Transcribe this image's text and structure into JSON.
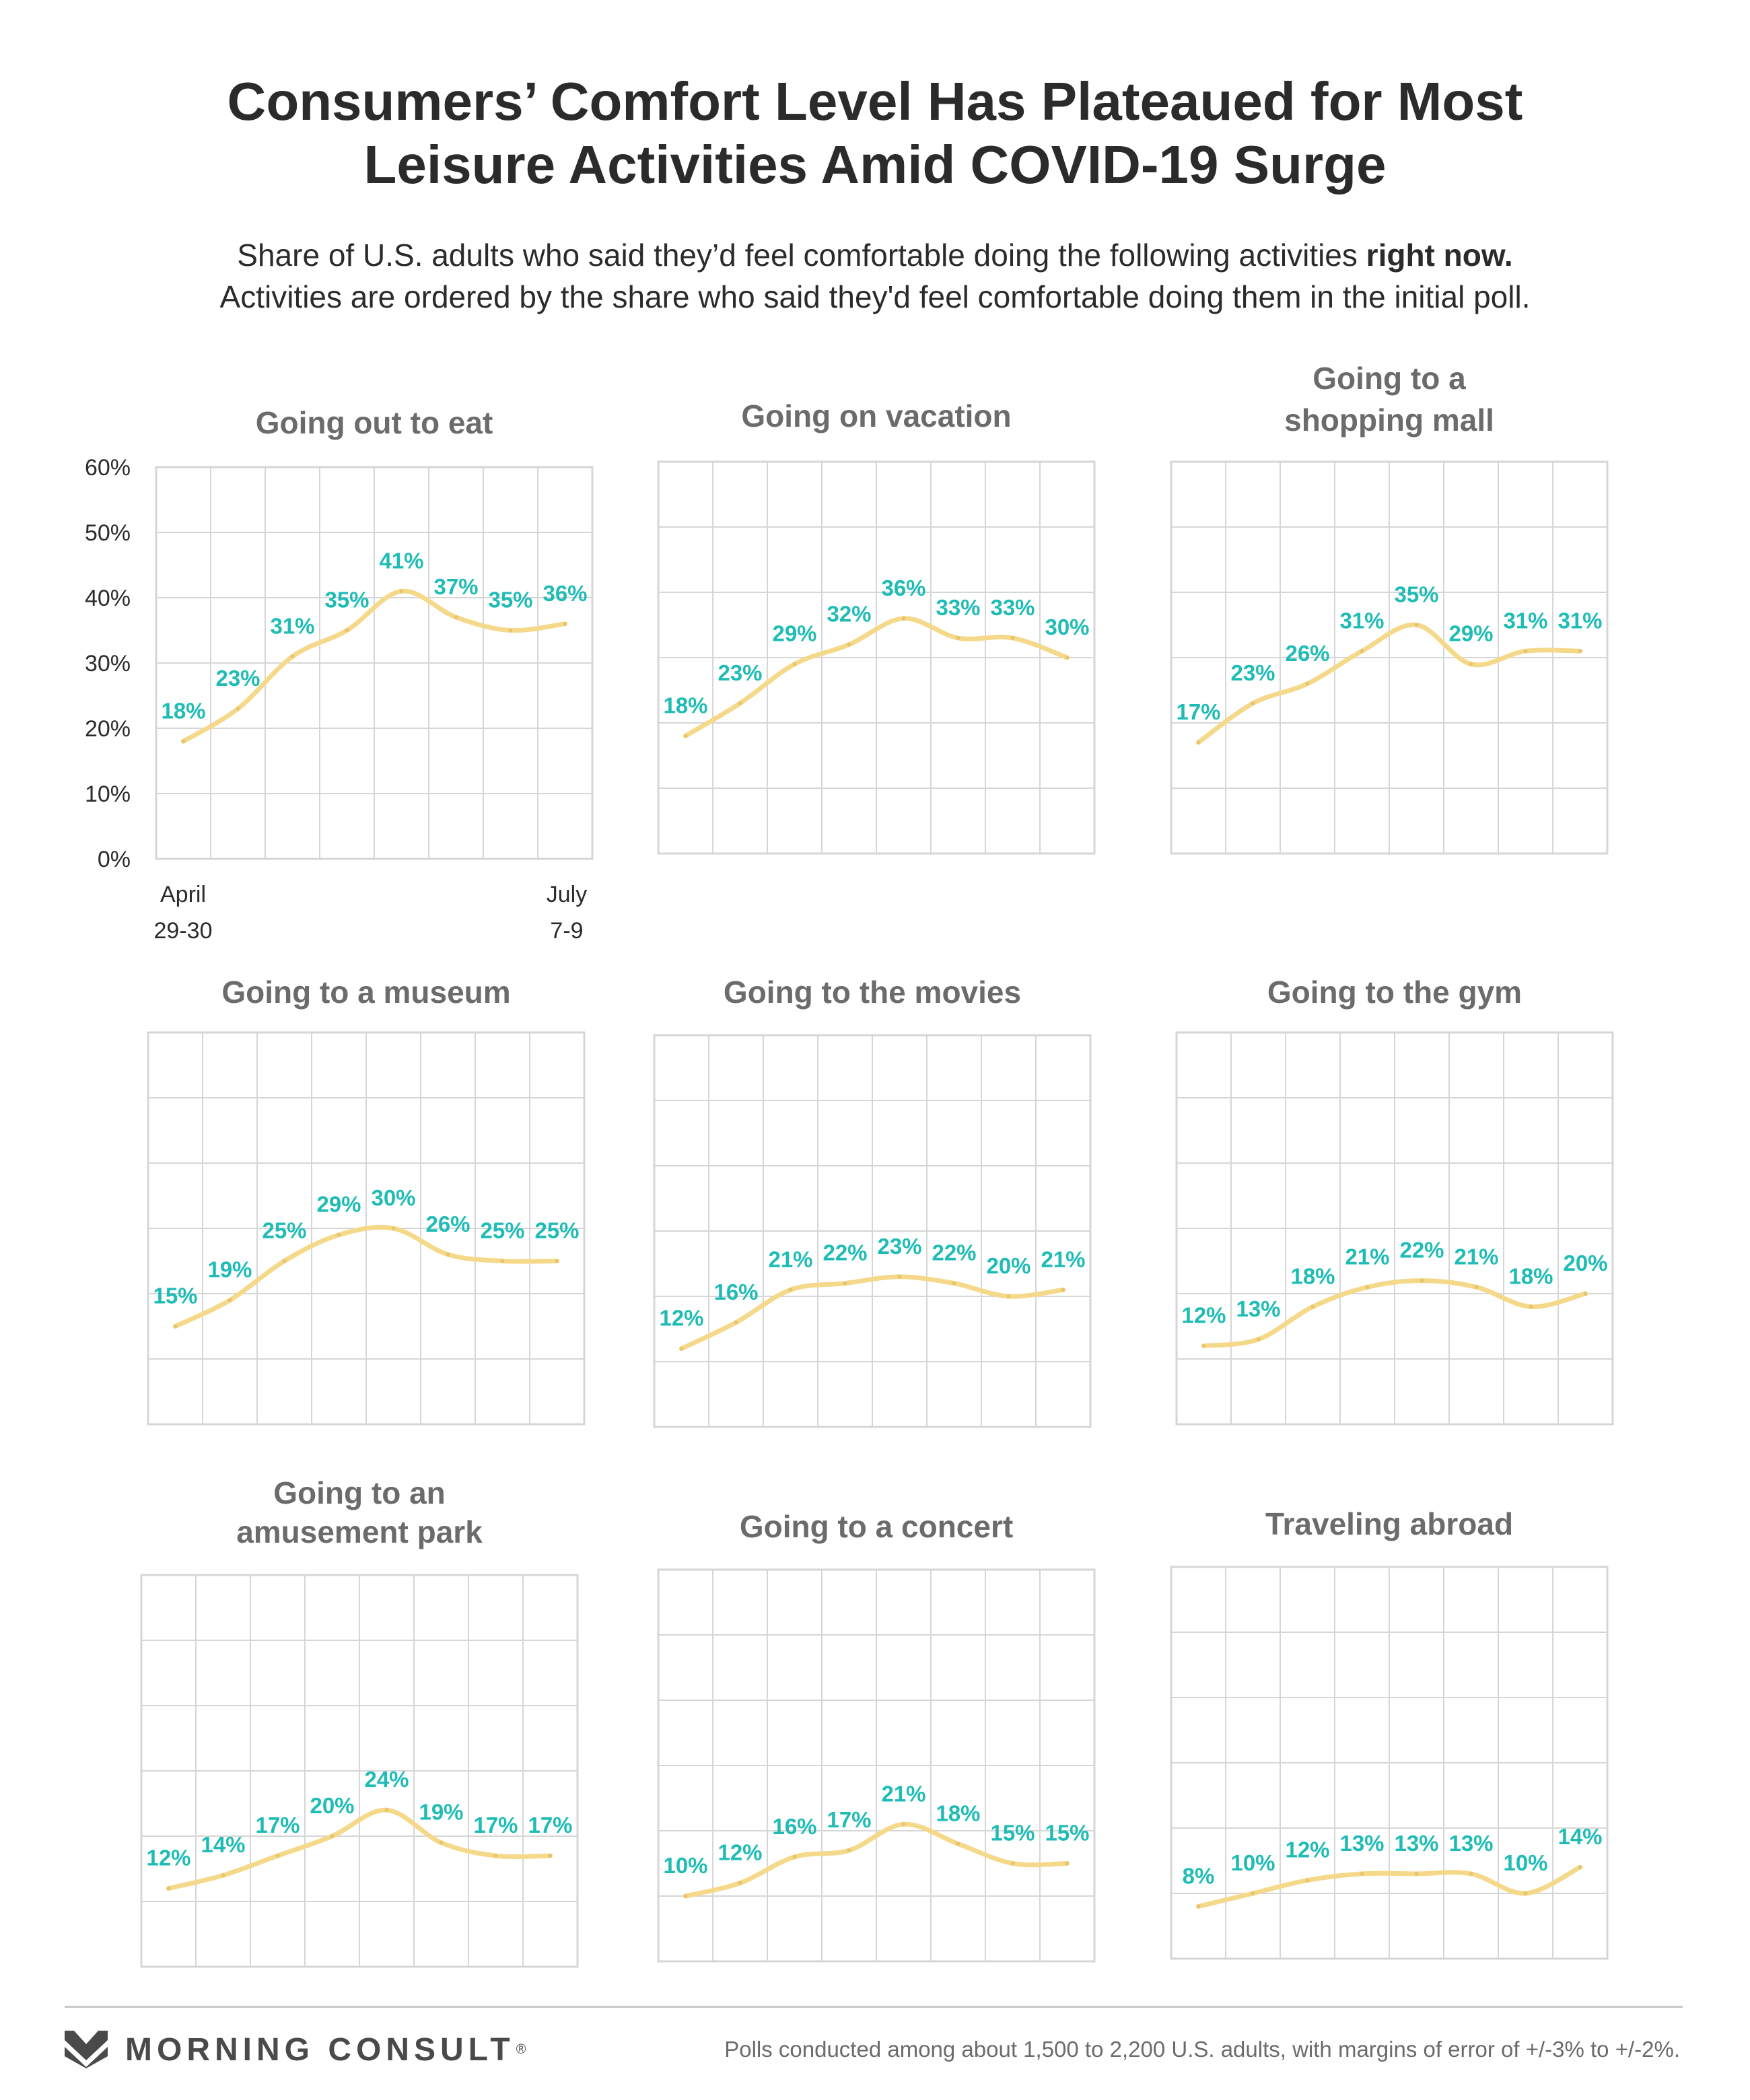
{
  "header": {
    "title_line1": "Consumers’ Comfort Level Has Plateaued for Most",
    "title_line2": "Leisure Activities Amid COVID-19 Surge",
    "subtitle_line1_pre": "Share of U.S. adults who said they’d feel comfortable doing the following activities ",
    "subtitle_line1_bold": "right now.",
    "subtitle_line2": "Activities are ordered by the share who said they'd feel comfortable doing them in the initial poll."
  },
  "footer": {
    "brand": "MORNING CONSULT",
    "tm": "®",
    "note": "Polls conducted among about 1,500 to 2,200 U.S. adults, with margins of error of +/-3% to +/-2%."
  },
  "colors": {
    "line": "#f5d98b",
    "label": "#1fbcb6",
    "grid": "#d6d6d6",
    "title": "#6b6b6b"
  },
  "chart_data": [
    {
      "type": "line",
      "title": "Going out to eat",
      "y_ticks": [
        "0%",
        "10%",
        "20%",
        "30%",
        "40%",
        "50%",
        "60%"
      ],
      "x_start": [
        "April",
        "29-30"
      ],
      "x_end": [
        "July",
        "7-9"
      ],
      "ylim": [
        0,
        60
      ],
      "series": [
        {
          "values": [
            18,
            23,
            31,
            35,
            41,
            37,
            35,
            36
          ]
        }
      ],
      "labels": [
        "18%",
        "23%",
        "31%",
        "35%",
        "41%",
        "37%",
        "35%",
        "36%"
      ]
    },
    {
      "type": "line",
      "title": "Going on vacation",
      "ylim": [
        0,
        60
      ],
      "series": [
        {
          "values": [
            18,
            23,
            29,
            32,
            36,
            33,
            33,
            30
          ]
        }
      ],
      "labels": [
        "18%",
        "23%",
        "29%",
        "32%",
        "36%",
        "33%",
        "33%",
        "30%"
      ]
    },
    {
      "type": "line",
      "title": "Going to a shopping mall",
      "ylim": [
        0,
        60
      ],
      "series": [
        {
          "values": [
            17,
            23,
            26,
            31,
            35,
            29,
            31,
            31
          ]
        }
      ],
      "labels": [
        "17%",
        "23%",
        "26%",
        "31%",
        "35%",
        "29%",
        "31%",
        "31%"
      ]
    },
    {
      "type": "line",
      "title": "Going to a museum",
      "ylim": [
        0,
        60
      ],
      "series": [
        {
          "values": [
            15,
            19,
            25,
            29,
            30,
            26,
            25,
            25
          ]
        }
      ],
      "labels": [
        "15%",
        "19%",
        "25%",
        "29%",
        "30%",
        "26%",
        "25%",
        "25%"
      ]
    },
    {
      "type": "line",
      "title": "Going to the movies",
      "ylim": [
        0,
        60
      ],
      "series": [
        {
          "values": [
            12,
            16,
            21,
            22,
            23,
            22,
            20,
            21
          ]
        }
      ],
      "labels": [
        "12%",
        "16%",
        "21%",
        "22%",
        "23%",
        "22%",
        "20%",
        "21%"
      ]
    },
    {
      "type": "line",
      "title": "Going to the gym",
      "ylim": [
        0,
        60
      ],
      "series": [
        {
          "values": [
            12,
            13,
            18,
            21,
            22,
            21,
            18,
            20
          ]
        }
      ],
      "labels": [
        "12%",
        "13%",
        "18%",
        "21%",
        "22%",
        "21%",
        "18%",
        "20%"
      ]
    },
    {
      "type": "line",
      "title": "Going to an amusement park",
      "ylim": [
        0,
        60
      ],
      "series": [
        {
          "values": [
            12,
            14,
            17,
            20,
            24,
            19,
            17,
            17
          ]
        }
      ],
      "labels": [
        "12%",
        "14%",
        "17%",
        "20%",
        "24%",
        "19%",
        "17%",
        "17%"
      ]
    },
    {
      "type": "line",
      "title": "Going to a concert",
      "ylim": [
        0,
        60
      ],
      "series": [
        {
          "values": [
            10,
            12,
            16,
            17,
            21,
            18,
            15,
            15
          ]
        }
      ],
      "labels": [
        "10%",
        "12%",
        "16%",
        "17%",
        "21%",
        "18%",
        "15%",
        "15%"
      ]
    },
    {
      "type": "line",
      "title": "Traveling abroad",
      "ylim": [
        0,
        60
      ],
      "series": [
        {
          "values": [
            8,
            10,
            12,
            13,
            13,
            13,
            10,
            14
          ]
        }
      ],
      "labels": [
        "8%",
        "10%",
        "12%",
        "13%",
        "13%",
        "13%",
        "10%",
        "14%"
      ]
    }
  ]
}
